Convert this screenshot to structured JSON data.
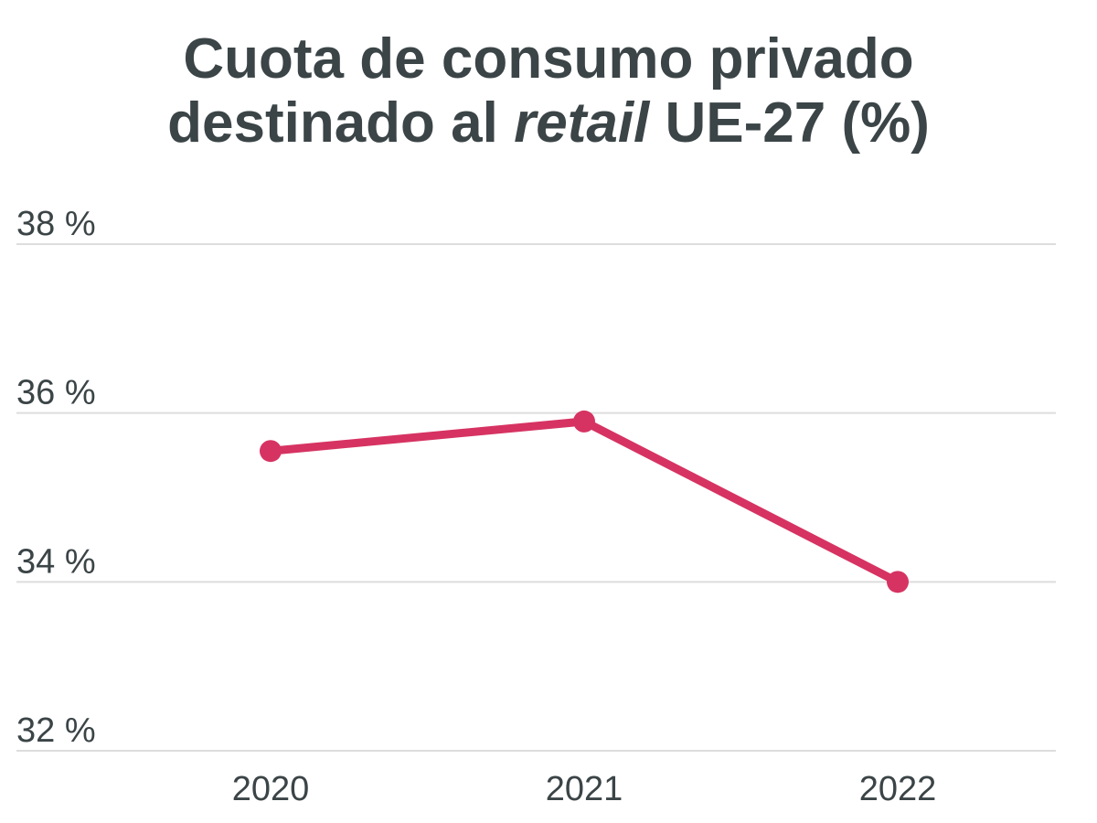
{
  "chart_data": {
    "type": "line",
    "title_line1": "Cuota de consumo privado",
    "title_line2_pre": "destinado al ",
    "title_line2_em": "retail",
    "title_line2_post": " UE-27 (%)",
    "categories": [
      "2020",
      "2021",
      "2022"
    ],
    "series": [
      {
        "values": [
          35.55,
          35.9,
          34.0
        ],
        "color": "#d63362"
      }
    ],
    "ylim": [
      32,
      38
    ],
    "yticks": [
      32,
      34,
      36,
      38
    ],
    "ytick_labels": [
      "32 %",
      "34 %",
      "36 %",
      "38 %"
    ],
    "grid": true
  }
}
